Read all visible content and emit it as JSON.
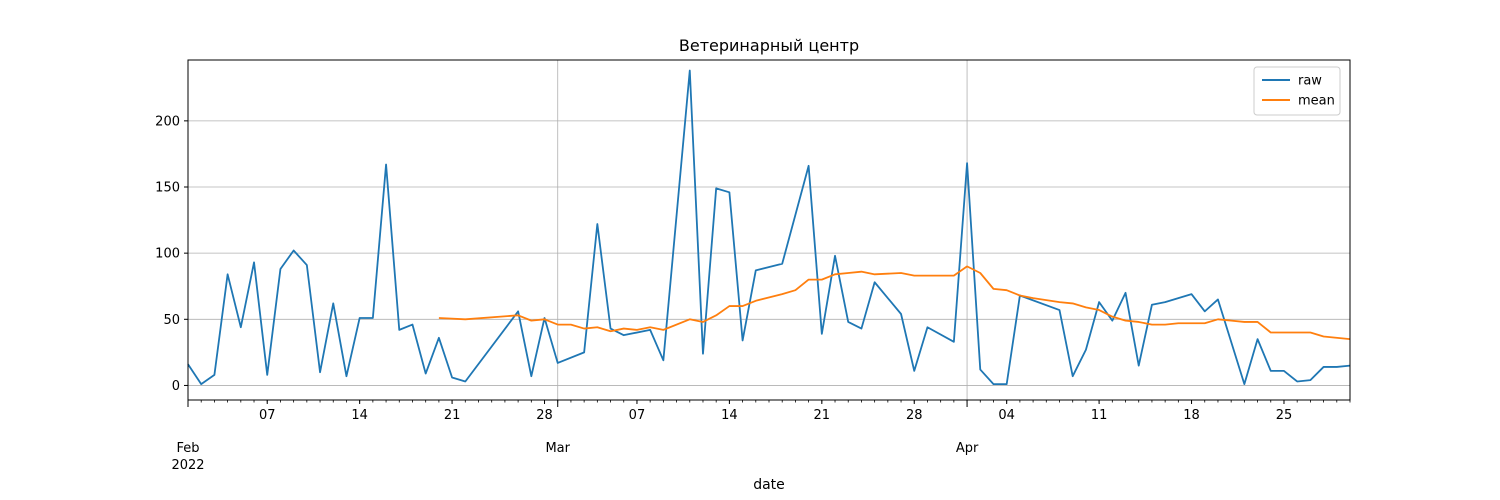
{
  "chart_data": {
    "type": "line",
    "title": "Ветеринарный центр",
    "xlabel": "date",
    "ylabel": "",
    "xlim": [
      "2022-02-01",
      "2022-04-30"
    ],
    "ylim": [
      -11,
      246
    ],
    "grid": true,
    "legend_position": "top-right",
    "y_ticks": [
      0,
      50,
      100,
      150,
      200
    ],
    "x_major_ticks": [
      {
        "date": "2022-03-01",
        "label": "Mar"
      },
      {
        "date": "2022-04-01",
        "label": "Apr"
      }
    ],
    "x_start_label": {
      "date": "2022-02-01",
      "label": "Feb",
      "year": "2022"
    },
    "x_minor_ticks": [
      {
        "date": "2022-02-07",
        "label": "07"
      },
      {
        "date": "2022-02-14",
        "label": "14"
      },
      {
        "date": "2022-02-21",
        "label": "21"
      },
      {
        "date": "2022-02-28",
        "label": "28"
      },
      {
        "date": "2022-03-07",
        "label": "07"
      },
      {
        "date": "2022-03-14",
        "label": "14"
      },
      {
        "date": "2022-03-21",
        "label": "21"
      },
      {
        "date": "2022-03-28",
        "label": "28"
      },
      {
        "date": "2022-04-04",
        "label": "04"
      },
      {
        "date": "2022-04-11",
        "label": "11"
      },
      {
        "date": "2022-04-18",
        "label": "18"
      },
      {
        "date": "2022-04-25",
        "label": "25"
      }
    ],
    "series": [
      {
        "name": "raw",
        "color": "#1f77b4",
        "points": [
          [
            "2022-02-01",
            16
          ],
          [
            "2022-02-02",
            1
          ],
          [
            "2022-02-03",
            8
          ],
          [
            "2022-02-04",
            84
          ],
          [
            "2022-02-05",
            44
          ],
          [
            "2022-02-06",
            93
          ],
          [
            "2022-02-07",
            8
          ],
          [
            "2022-02-08",
            88
          ],
          [
            "2022-02-09",
            102
          ],
          [
            "2022-02-10",
            91
          ],
          [
            "2022-02-11",
            10
          ],
          [
            "2022-02-12",
            62
          ],
          [
            "2022-02-13",
            7
          ],
          [
            "2022-02-14",
            51
          ],
          [
            "2022-02-15",
            51
          ],
          [
            "2022-02-16",
            167
          ],
          [
            "2022-02-17",
            42
          ],
          [
            "2022-02-18",
            46
          ],
          [
            "2022-02-19",
            9
          ],
          [
            "2022-02-20",
            36
          ],
          [
            "2022-02-21",
            6
          ],
          [
            "2022-02-22",
            3
          ],
          [
            "2022-02-26",
            56
          ],
          [
            "2022-02-27",
            7
          ],
          [
            "2022-02-28",
            51
          ],
          [
            "2022-03-01",
            17
          ],
          [
            "2022-03-03",
            25
          ],
          [
            "2022-03-04",
            122
          ],
          [
            "2022-03-05",
            43
          ],
          [
            "2022-03-06",
            38
          ],
          [
            "2022-03-08",
            42
          ],
          [
            "2022-03-09",
            19
          ],
          [
            "2022-03-11",
            238
          ],
          [
            "2022-03-12",
            24
          ],
          [
            "2022-03-13",
            149
          ],
          [
            "2022-03-14",
            146
          ],
          [
            "2022-03-15",
            34
          ],
          [
            "2022-03-16",
            87
          ],
          [
            "2022-03-18",
            92
          ],
          [
            "2022-03-20",
            166
          ],
          [
            "2022-03-21",
            39
          ],
          [
            "2022-03-22",
            98
          ],
          [
            "2022-03-23",
            48
          ],
          [
            "2022-03-24",
            43
          ],
          [
            "2022-03-25",
            78
          ],
          [
            "2022-03-27",
            54
          ],
          [
            "2022-03-28",
            11
          ],
          [
            "2022-03-29",
            44
          ],
          [
            "2022-03-31",
            33
          ],
          [
            "2022-04-01",
            168
          ],
          [
            "2022-04-02",
            12
          ],
          [
            "2022-04-03",
            1
          ],
          [
            "2022-04-04",
            1
          ],
          [
            "2022-04-05",
            68
          ],
          [
            "2022-04-08",
            57
          ],
          [
            "2022-04-09",
            7
          ],
          [
            "2022-04-10",
            27
          ],
          [
            "2022-04-11",
            63
          ],
          [
            "2022-04-12",
            49
          ],
          [
            "2022-04-13",
            70
          ],
          [
            "2022-04-14",
            15
          ],
          [
            "2022-04-15",
            61
          ],
          [
            "2022-04-16",
            63
          ],
          [
            "2022-04-18",
            69
          ],
          [
            "2022-04-19",
            56
          ],
          [
            "2022-04-20",
            65
          ],
          [
            "2022-04-22",
            1
          ],
          [
            "2022-04-23",
            35
          ],
          [
            "2022-04-24",
            11
          ],
          [
            "2022-04-25",
            11
          ],
          [
            "2022-04-26",
            3
          ],
          [
            "2022-04-27",
            4
          ],
          [
            "2022-04-28",
            14
          ],
          [
            "2022-04-29",
            14
          ],
          [
            "2022-04-30",
            15
          ]
        ]
      },
      {
        "name": "mean",
        "color": "#ff7f0e",
        "points": [
          [
            "2022-02-20",
            51
          ],
          [
            "2022-02-22",
            50
          ],
          [
            "2022-02-26",
            53
          ],
          [
            "2022-02-27",
            49
          ],
          [
            "2022-02-28",
            50
          ],
          [
            "2022-03-01",
            46
          ],
          [
            "2022-03-02",
            46
          ],
          [
            "2022-03-03",
            43
          ],
          [
            "2022-03-04",
            44
          ],
          [
            "2022-03-05",
            41
          ],
          [
            "2022-03-06",
            43
          ],
          [
            "2022-03-07",
            42
          ],
          [
            "2022-03-08",
            44
          ],
          [
            "2022-03-09",
            42
          ],
          [
            "2022-03-11",
            50
          ],
          [
            "2022-03-12",
            48
          ],
          [
            "2022-03-13",
            53
          ],
          [
            "2022-03-14",
            60
          ],
          [
            "2022-03-15",
            60
          ],
          [
            "2022-03-16",
            64
          ],
          [
            "2022-03-18",
            69
          ],
          [
            "2022-03-19",
            72
          ],
          [
            "2022-03-20",
            80
          ],
          [
            "2022-03-21",
            80
          ],
          [
            "2022-03-22",
            84
          ],
          [
            "2022-03-23",
            85
          ],
          [
            "2022-03-24",
            86
          ],
          [
            "2022-03-25",
            84
          ],
          [
            "2022-03-27",
            85
          ],
          [
            "2022-03-28",
            83
          ],
          [
            "2022-03-29",
            83
          ],
          [
            "2022-03-31",
            83
          ],
          [
            "2022-04-01",
            90
          ],
          [
            "2022-04-02",
            85
          ],
          [
            "2022-04-03",
            73
          ],
          [
            "2022-04-04",
            72
          ],
          [
            "2022-04-05",
            68
          ],
          [
            "2022-04-06",
            66
          ],
          [
            "2022-04-08",
            63
          ],
          [
            "2022-04-09",
            62
          ],
          [
            "2022-04-10",
            59
          ],
          [
            "2022-04-11",
            57
          ],
          [
            "2022-04-12",
            52
          ],
          [
            "2022-04-13",
            49
          ],
          [
            "2022-04-14",
            48
          ],
          [
            "2022-04-15",
            46
          ],
          [
            "2022-04-16",
            46
          ],
          [
            "2022-04-17",
            47
          ],
          [
            "2022-04-18",
            47
          ],
          [
            "2022-04-19",
            47
          ],
          [
            "2022-04-20",
            50
          ],
          [
            "2022-04-21",
            49
          ],
          [
            "2022-04-22",
            48
          ],
          [
            "2022-04-23",
            48
          ],
          [
            "2022-04-24",
            40
          ],
          [
            "2022-04-26",
            40
          ],
          [
            "2022-04-27",
            40
          ],
          [
            "2022-04-28",
            37
          ],
          [
            "2022-04-30",
            35
          ]
        ]
      }
    ]
  }
}
